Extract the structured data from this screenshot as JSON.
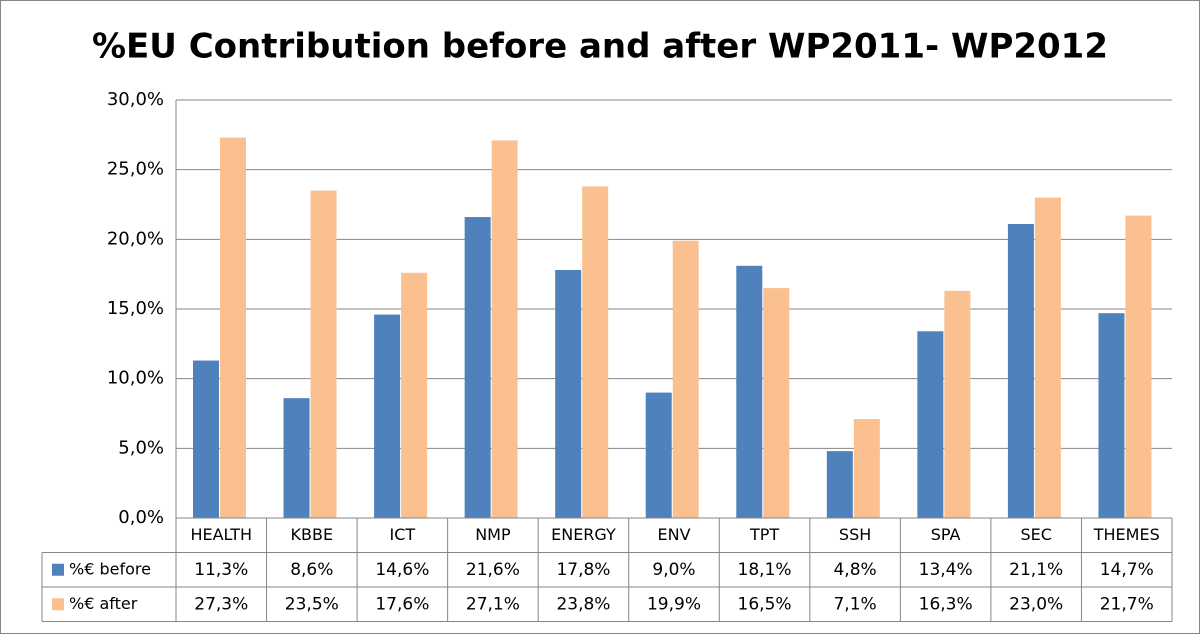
{
  "chart_data": {
    "type": "bar",
    "title": "%EU Contribution before and after WP2011- WP2012",
    "categories": [
      "HEALTH",
      "KBBE",
      "ICT",
      "NMP",
      "ENERGY",
      "ENV",
      "TPT",
      "SSH",
      "SPA",
      "SEC",
      "THEMES"
    ],
    "series": [
      {
        "name": "%€ before",
        "color": "#4f81bd",
        "values": [
          11.3,
          8.6,
          14.6,
          21.6,
          17.8,
          9.0,
          18.1,
          4.8,
          13.4,
          21.1,
          14.7
        ],
        "value_labels": [
          "11,3%",
          "8,6%",
          "14,6%",
          "21,6%",
          "17,8%",
          "9,0%",
          "18,1%",
          "4,8%",
          "13,4%",
          "21,1%",
          "14,7%"
        ]
      },
      {
        "name": "%€ after",
        "color": "#fac090",
        "values": [
          27.3,
          23.5,
          17.6,
          27.1,
          23.8,
          19.9,
          16.5,
          7.1,
          16.3,
          23.0,
          21.7
        ],
        "value_labels": [
          "27,3%",
          "23,5%",
          "17,6%",
          "27,1%",
          "23,8%",
          "19,9%",
          "16,5%",
          "7,1%",
          "16,3%",
          "23,0%",
          "21,7%"
        ]
      }
    ],
    "ylim": [
      0,
      30
    ],
    "yticks": [
      {
        "value": 0,
        "label": "0,0%"
      },
      {
        "value": 5,
        "label": "5,0%"
      },
      {
        "value": 10,
        "label": "10,0%"
      },
      {
        "value": 15,
        "label": "15,0%"
      },
      {
        "value": 20,
        "label": "20,0%"
      },
      {
        "value": 25,
        "label": "25,0%"
      },
      {
        "value": 30,
        "label": "30,0%"
      }
    ],
    "grid": true
  }
}
